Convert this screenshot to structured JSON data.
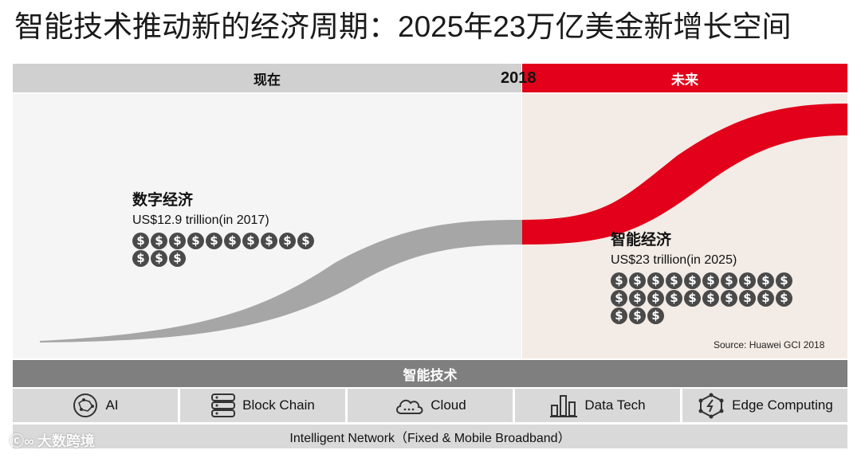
{
  "title": "智能技术推动新的经济周期：2025年23万亿美金新增长空间",
  "timeline": {
    "now_label": "现在",
    "year": "2018",
    "future_label": "未来"
  },
  "digital_economy": {
    "name": "数字经济",
    "value": "US$12.9 trillion(in 2017)",
    "coin_count": 13
  },
  "intelligent_economy": {
    "name": "智能经济",
    "value": "US$23 trillion(in 2025)",
    "coin_count": 23
  },
  "coin_symbol": "$",
  "source": "Source: Huawei GCI 2018",
  "tech_bar_label": "智能技术",
  "technologies": [
    {
      "label": "AI",
      "icon": "ai-brain-icon"
    },
    {
      "label": "Block Chain",
      "icon": "server-stack-icon"
    },
    {
      "label": "Cloud",
      "icon": "cloud-icon"
    },
    {
      "label": "Data Tech",
      "icon": "bar-chart-icon"
    },
    {
      "label": "Edge Computing",
      "icon": "edge-network-icon"
    }
  ],
  "network_label": "Intelligent Network（Fixed & Mobile Broadband）",
  "watermark": "大数跨境",
  "colors": {
    "accent_red": "#e2001a",
    "gray_band": "#d0d0d0",
    "curve_gray": "#a6a6a6",
    "coin": "#4a4a4a",
    "tech_bar": "#7f7f7f"
  }
}
